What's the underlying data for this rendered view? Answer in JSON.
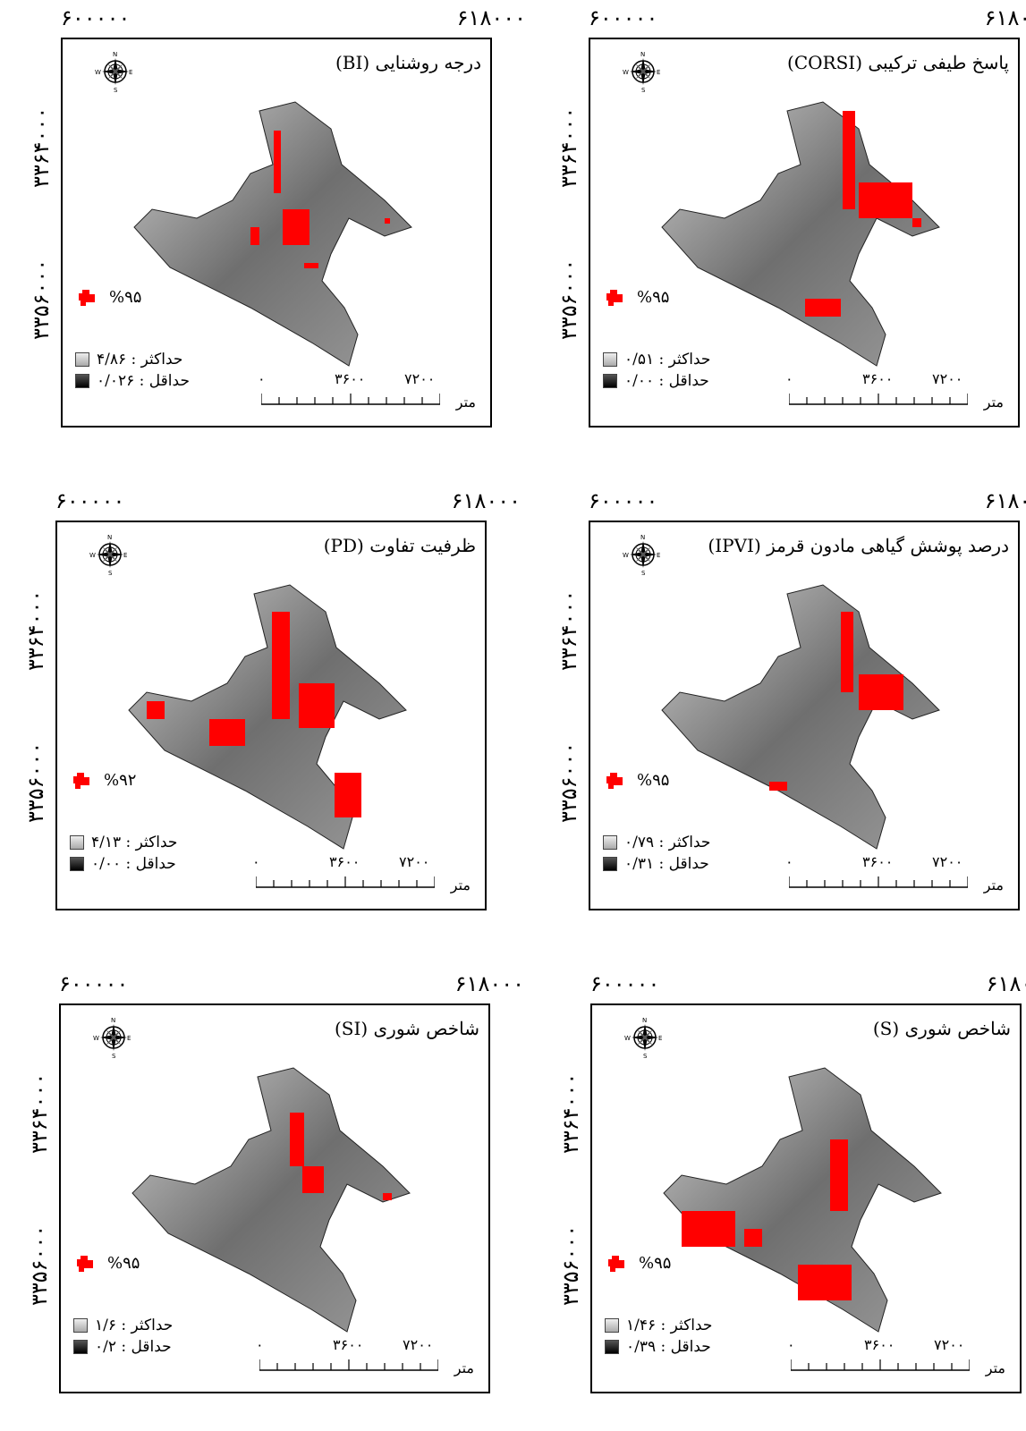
{
  "coords": {
    "x_left": "۶۰۰۰۰۰",
    "x_right": "۶۱۸۰۰۰",
    "y_top": "۳۳۶۴۰۰۰",
    "y_bottom": "۳۳۵۶۰۰۰"
  },
  "scale": {
    "zero": "۰",
    "mid": "۳۶۰۰",
    "end": "۷۲۰۰",
    "unit": "متر"
  },
  "compass": {
    "n": "N",
    "s": "S",
    "e": "E",
    "w": "W"
  },
  "labels": {
    "max": "حداکثر",
    "min": "حداقل"
  },
  "colors": {
    "highlight": "#ff0000",
    "frame": "#000000"
  },
  "panels": [
    {
      "title": "درجه روشنایی (BI)",
      "significance": "%۹۵",
      "max": "۴/۸۶",
      "min": "۰/۰۲۶"
    },
    {
      "title": "پاسخ طیفی ترکیبی (CORSI)",
      "significance": "%۹۵",
      "max": "۰/۵۱",
      "min": "۰/۰۰"
    },
    {
      "title": "ظرفیت تفاوت (PD)",
      "significance": "%۹۲",
      "max": "۴/۱۳",
      "min": "۰/۰۰"
    },
    {
      "title": "درصد پوشش گیاهی مادون قرمز (IPVI)",
      "significance": "%۹۵",
      "max": "۰/۷۹",
      "min": "۰/۳۱"
    },
    {
      "title": "شاخص شوری (SI)",
      "significance": "%۹۵",
      "max": "۱/۶",
      "min": "۰/۲"
    },
    {
      "title": "شاخص شوری (S)",
      "significance": "%۹۵",
      "max": "۱/۴۶",
      "min": "۰/۳۹"
    }
  ]
}
